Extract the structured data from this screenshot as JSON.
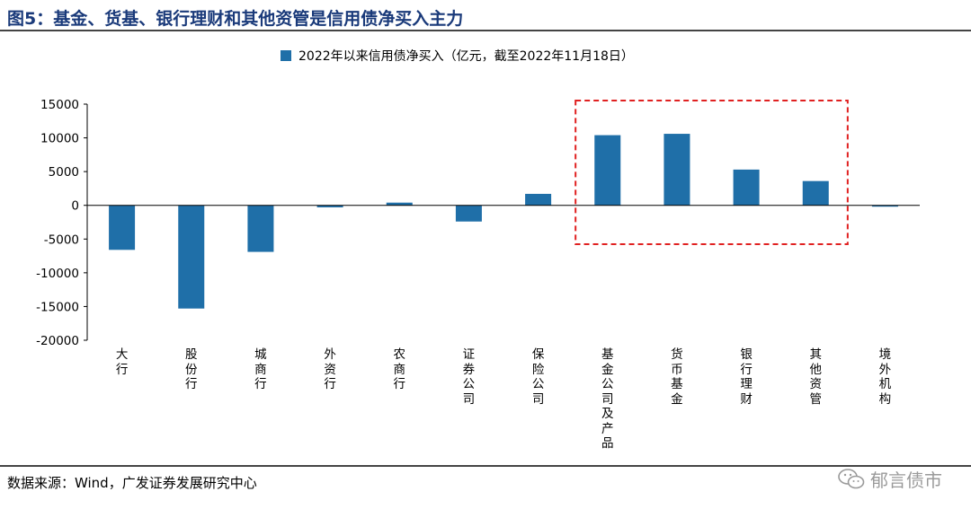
{
  "figure": {
    "title": "图5：基金、货基、银行理财和其他资管是信用债净买入主力",
    "source": "数据来源：Wind，广发证券发展研究中心",
    "watermark": "郁言债市"
  },
  "colors": {
    "bar": "#1f6fa8",
    "highlight_box": "#e02020",
    "title": "#1a3a7a"
  },
  "chart_data": {
    "type": "bar",
    "title": "",
    "legend": [
      "2022年以来信用债净买入（亿元，截至2022年11月18日）"
    ],
    "legend_position": "top-center",
    "categories": [
      "大行",
      "股份行",
      "城商行",
      "外资行",
      "农商行",
      "证券公司",
      "保险公司",
      "基金公司及产品",
      "货币基金",
      "银行理财",
      "其他资管",
      "境外机构"
    ],
    "series": [
      {
        "name": "2022年以来信用债净买入（亿元，截至2022年11月18日）",
        "values": [
          -6600,
          -15300,
          -6900,
          -300,
          400,
          -2400,
          1700,
          10400,
          10600,
          5300,
          3600,
          -100
        ]
      }
    ],
    "yticks": [
      15000,
      10000,
      5000,
      0,
      -5000,
      -10000,
      -15000,
      -20000
    ],
    "ytick_labels": [
      "15000",
      "10000",
      "5000",
      "0",
      "-5000",
      "-10000",
      "-15000",
      "-20000"
    ],
    "ylim": [
      -20000,
      15000
    ],
    "xlabel": "",
    "ylabel": "",
    "grid": false,
    "highlight": {
      "categories": [
        "基金公司及产品",
        "货币基金",
        "银行理财",
        "其他资管"
      ],
      "style": "dashed-box"
    }
  }
}
